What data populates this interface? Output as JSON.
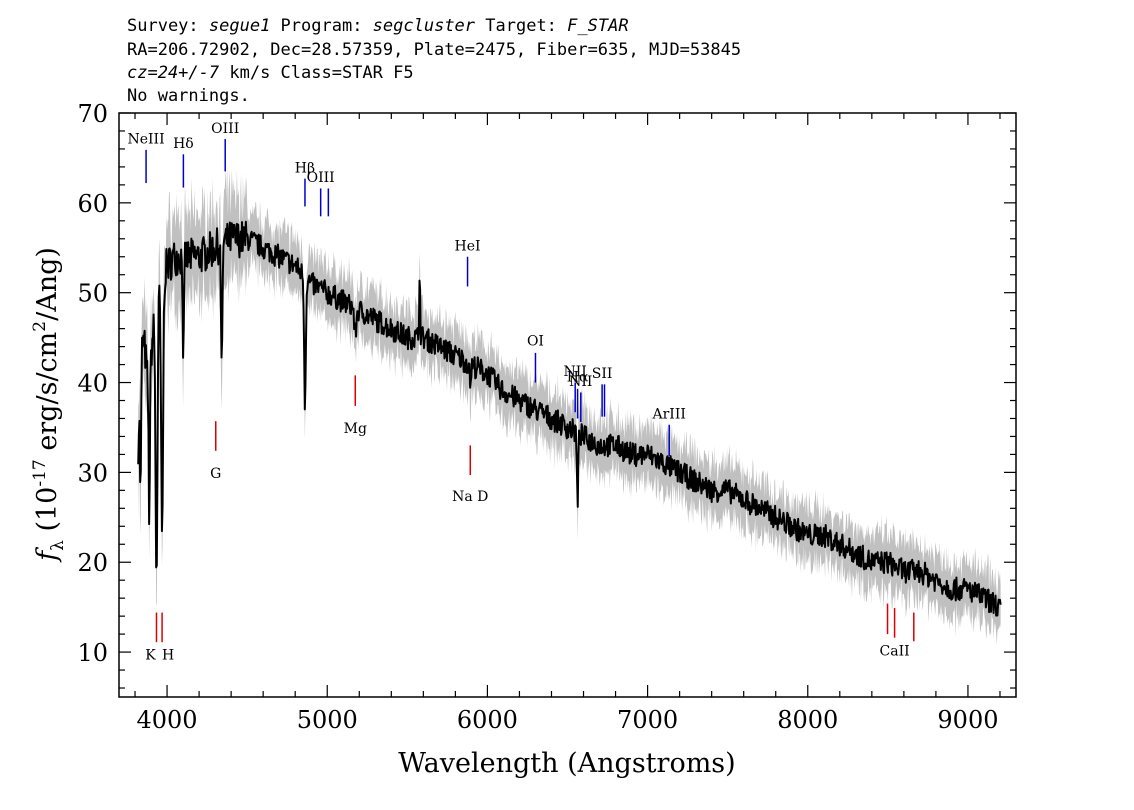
{
  "header": {
    "line1": {
      "survey_label": "Survey: ",
      "survey": "segue1",
      "program_label": " Program: ",
      "program": "segcluster",
      "target_label": " Target: ",
      "target": "F_STAR"
    },
    "line2": "RA=206.72902, Dec=28.57359, Plate=2475, Fiber=635, MJD=53845",
    "line3": {
      "cz": "cz=24+/-7",
      "rest": " km/s Class=STAR F5"
    },
    "line4": "No warnings."
  },
  "colors": {
    "flux": "#000000",
    "error_band": "#c0c0c0",
    "emission_marker": "#0000cc",
    "absorption_marker": "#dd0000"
  },
  "chart_data": {
    "type": "line",
    "xlabel": "Wavelength (Angstroms)",
    "ylabel": "f_λ (10^-17 erg/s/cm^2/Ang)",
    "xlim": [
      3700,
      9300
    ],
    "ylim": [
      5,
      70
    ],
    "x_ticks": [
      4000,
      5000,
      6000,
      7000,
      8000,
      9000
    ],
    "y_ticks": [
      10,
      20,
      30,
      40,
      50,
      60,
      70
    ],
    "flux_anchors": [
      [
        3820,
        33
      ],
      [
        3840,
        45
      ],
      [
        3860,
        44
      ],
      [
        3880,
        40
      ],
      [
        3900,
        43
      ],
      [
        3920,
        47
      ],
      [
        3950,
        50
      ],
      [
        3980,
        52
      ],
      [
        4000,
        53
      ],
      [
        4050,
        54
      ],
      [
        4100,
        54
      ],
      [
        4150,
        54
      ],
      [
        4200,
        54
      ],
      [
        4300,
        55
      ],
      [
        4400,
        56
      ],
      [
        4500,
        56
      ],
      [
        4600,
        55
      ],
      [
        4700,
        54
      ],
      [
        4800,
        53
      ],
      [
        4900,
        51
      ],
      [
        5000,
        50
      ],
      [
        5100,
        49
      ],
      [
        5200,
        48
      ],
      [
        5300,
        47
      ],
      [
        5400,
        46
      ],
      [
        5500,
        45
      ],
      [
        5600,
        45
      ],
      [
        5700,
        44
      ],
      [
        5800,
        43
      ],
      [
        5900,
        42
      ],
      [
        6000,
        41
      ],
      [
        6100,
        39
      ],
      [
        6200,
        38
      ],
      [
        6300,
        37
      ],
      [
        6400,
        36
      ],
      [
        6500,
        35
      ],
      [
        6600,
        34
      ],
      [
        6700,
        33
      ],
      [
        6800,
        33
      ],
      [
        6900,
        32
      ],
      [
        7000,
        32
      ],
      [
        7100,
        31
      ],
      [
        7200,
        30
      ],
      [
        7300,
        29
      ],
      [
        7400,
        28
      ],
      [
        7500,
        28
      ],
      [
        7600,
        27
      ],
      [
        7700,
        26
      ],
      [
        7800,
        25
      ],
      [
        7900,
        24
      ],
      [
        8000,
        23
      ],
      [
        8100,
        23
      ],
      [
        8200,
        22
      ],
      [
        8300,
        21
      ],
      [
        8400,
        20
      ],
      [
        8500,
        20
      ],
      [
        8600,
        19
      ],
      [
        8700,
        19
      ],
      [
        8800,
        18
      ],
      [
        8900,
        17
      ],
      [
        9000,
        17
      ],
      [
        9100,
        16
      ],
      [
        9200,
        15
      ]
    ],
    "absorption_features": [
      {
        "center": 3934,
        "depth": 30,
        "width": 6
      },
      {
        "center": 3969,
        "depth": 29,
        "width": 6
      },
      {
        "center": 3889,
        "depth": 16,
        "width": 4
      },
      {
        "center": 3835,
        "depth": 14,
        "width": 4
      },
      {
        "center": 4102,
        "depth": 11,
        "width": 4
      },
      {
        "center": 4341,
        "depth": 15,
        "width": 4
      },
      {
        "center": 4861,
        "depth": 14,
        "width": 5
      },
      {
        "center": 5175,
        "depth": 3,
        "width": 6
      },
      {
        "center": 5893,
        "depth": 2,
        "width": 5
      },
      {
        "center": 6563,
        "depth": 8,
        "width": 4
      }
    ],
    "spikes": [
      {
        "center": 5577,
        "height": 8
      },
      {
        "center": 4300,
        "height": 0
      }
    ],
    "error_band_halfwidth": 3,
    "emission_lines": [
      {
        "label": "NeIII",
        "wavelength": 3869,
        "y_low": 62.2,
        "y_high": 65.9,
        "label_y": 66.6
      },
      {
        "label": "Hδ",
        "wavelength": 4102,
        "y_low": 61.7,
        "y_high": 65.4,
        "label_y": 66.1
      },
      {
        "label": "OIII",
        "wavelength": 4363,
        "y_low": 63.5,
        "y_high": 67.1,
        "label_y": 67.8
      },
      {
        "label": "Hβ",
        "wavelength": 4861,
        "y_low": 59.6,
        "y_high": 62.7,
        "label_y": 63.4
      },
      {
        "label": "OIII",
        "wavelength": 4959,
        "y_low": 58.5,
        "y_high": 61.6,
        "label_y": 62.3
      },
      {
        "label": "",
        "wavelength": 5007,
        "y_low": 58.5,
        "y_high": 61.6,
        "label_y": 0
      },
      {
        "label": "HeI",
        "wavelength": 5876,
        "y_low": 50.7,
        "y_high": 54.0,
        "label_y": 54.7
      },
      {
        "label": "OI",
        "wavelength": 6300,
        "y_low": 40.0,
        "y_high": 43.3,
        "label_y": 44.1
      },
      {
        "label": "NII",
        "wavelength": 6548,
        "y_low": 36.7,
        "y_high": 40.0,
        "label_y": 40.7
      },
      {
        "label": "Hα",
        "wavelength": 6563,
        "y_low": 36.0,
        "y_high": 39.3,
        "label_y": 40.1
      },
      {
        "label": "NII",
        "wavelength": 6583,
        "y_low": 35.6,
        "y_high": 38.9,
        "label_y": 39.6
      },
      {
        "label": "SII",
        "wavelength": 6716,
        "y_low": 36.2,
        "y_high": 39.8,
        "label_y": 40.5
      },
      {
        "label": "",
        "wavelength": 6731,
        "y_low": 36.2,
        "y_high": 39.8,
        "label_y": 0
      },
      {
        "label": "ArIII",
        "wavelength": 7135,
        "y_low": 31.8,
        "y_high": 35.3,
        "label_y": 36.0
      }
    ],
    "absorption_lines": [
      {
        "label": "K",
        "wavelength": 3934,
        "y_low": 11.1,
        "y_high": 14.4,
        "label_y": 9.2,
        "label_dx": -6
      },
      {
        "label": "H",
        "wavelength": 3969,
        "y_low": 11.1,
        "y_high": 14.4,
        "label_y": 9.2,
        "label_dx": 6
      },
      {
        "label": "G",
        "wavelength": 4304,
        "y_low": 32.4,
        "y_high": 35.7,
        "label_y": 29.4,
        "label_dx": 0
      },
      {
        "label": "Mg",
        "wavelength": 5175,
        "y_low": 37.4,
        "y_high": 40.8,
        "label_y": 34.4,
        "label_dx": 0
      },
      {
        "label": "Na D",
        "wavelength": 5893,
        "y_low": 29.7,
        "y_high": 33.0,
        "label_y": 26.8,
        "label_dx": 0
      },
      {
        "label": "",
        "wavelength": 8498,
        "y_low": 12.0,
        "y_high": 15.4,
        "label_y": 0,
        "label_dx": 0
      },
      {
        "label": "CaII",
        "wavelength": 8542,
        "y_low": 11.6,
        "y_high": 14.9,
        "label_y": 9.6,
        "label_dx": 0
      },
      {
        "label": "",
        "wavelength": 8662,
        "y_low": 11.2,
        "y_high": 14.4,
        "label_y": 0,
        "label_dx": 0
      }
    ]
  }
}
